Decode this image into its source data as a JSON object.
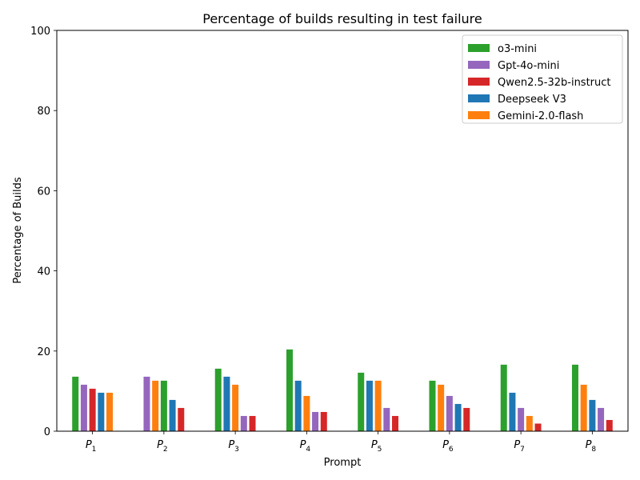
{
  "chart_data": {
    "type": "bar",
    "title": "Percentage of builds resulting in test failure",
    "xlabel": "Prompt",
    "ylabel": "Percentage of Builds",
    "ylim": [
      0,
      100
    ],
    "yticks": [
      0,
      20,
      40,
      60,
      80,
      100
    ],
    "grid": false,
    "legend_position": "top-right",
    "groups": [
      {
        "label": "P",
        "sub": "1",
        "bars": [
          {
            "model": "o3-mini",
            "value": 13.7
          },
          {
            "model": "Gpt-4o-mini",
            "value": 11.7
          },
          {
            "model": "Qwen2.5-32b-instruct",
            "value": 10.7
          },
          {
            "model": "Deepseek V3",
            "value": 9.7
          },
          {
            "model": "Gemini-2.0-flash",
            "value": 9.7
          }
        ]
      },
      {
        "label": "P",
        "sub": "2",
        "bars": [
          {
            "model": "Gpt-4o-mini",
            "value": 13.7
          },
          {
            "model": "Gemini-2.0-flash",
            "value": 12.7
          },
          {
            "model": "o3-mini",
            "value": 12.7
          },
          {
            "model": "Deepseek V3",
            "value": 7.9
          },
          {
            "model": "Qwen2.5-32b-instruct",
            "value": 5.9
          }
        ]
      },
      {
        "label": "P",
        "sub": "3",
        "bars": [
          {
            "model": "o3-mini",
            "value": 15.7
          },
          {
            "model": "Deepseek V3",
            "value": 13.7
          },
          {
            "model": "Gemini-2.0-flash",
            "value": 11.7
          },
          {
            "model": "Gpt-4o-mini",
            "value": 3.9
          },
          {
            "model": "Qwen2.5-32b-instruct",
            "value": 3.9
          }
        ]
      },
      {
        "label": "P",
        "sub": "4",
        "bars": [
          {
            "model": "o3-mini",
            "value": 20.5
          },
          {
            "model": "Deepseek V3",
            "value": 12.7
          },
          {
            "model": "Gemini-2.0-flash",
            "value": 8.9
          },
          {
            "model": "Gpt-4o-mini",
            "value": 4.9
          },
          {
            "model": "Qwen2.5-32b-instruct",
            "value": 4.9
          }
        ]
      },
      {
        "label": "P",
        "sub": "5",
        "bars": [
          {
            "model": "o3-mini",
            "value": 14.7
          },
          {
            "model": "Deepseek V3",
            "value": 12.7
          },
          {
            "model": "Gemini-2.0-flash",
            "value": 12.7
          },
          {
            "model": "Gpt-4o-mini",
            "value": 5.9
          },
          {
            "model": "Qwen2.5-32b-instruct",
            "value": 3.9
          }
        ]
      },
      {
        "label": "P",
        "sub": "6",
        "bars": [
          {
            "model": "o3-mini",
            "value": 12.7
          },
          {
            "model": "Gemini-2.0-flash",
            "value": 11.7
          },
          {
            "model": "Gpt-4o-mini",
            "value": 8.9
          },
          {
            "model": "Deepseek V3",
            "value": 6.9
          },
          {
            "model": "Qwen2.5-32b-instruct",
            "value": 5.9
          }
        ]
      },
      {
        "label": "P",
        "sub": "7",
        "bars": [
          {
            "model": "o3-mini",
            "value": 16.7
          },
          {
            "model": "Deepseek V3",
            "value": 9.7
          },
          {
            "model": "Gpt-4o-mini",
            "value": 5.9
          },
          {
            "model": "Gemini-2.0-flash",
            "value": 3.9
          },
          {
            "model": "Qwen2.5-32b-instruct",
            "value": 2.0
          }
        ]
      },
      {
        "label": "P",
        "sub": "8",
        "bars": [
          {
            "model": "o3-mini",
            "value": 16.7
          },
          {
            "model": "Gemini-2.0-flash",
            "value": 11.7
          },
          {
            "model": "Deepseek V3",
            "value": 7.9
          },
          {
            "model": "Gpt-4o-mini",
            "value": 5.9
          },
          {
            "model": "Qwen2.5-32b-instruct",
            "value": 2.9
          }
        ]
      }
    ],
    "legend": [
      {
        "name": "o3-mini",
        "color": "#2ca02c"
      },
      {
        "name": "Gpt-4o-mini",
        "color": "#9467bd"
      },
      {
        "name": "Qwen2.5-32b-instruct",
        "color": "#d62728"
      },
      {
        "name": "Deepseek V3",
        "color": "#1f77b4"
      },
      {
        "name": "Gemini-2.0-flash",
        "color": "#ff7f0e"
      }
    ]
  }
}
